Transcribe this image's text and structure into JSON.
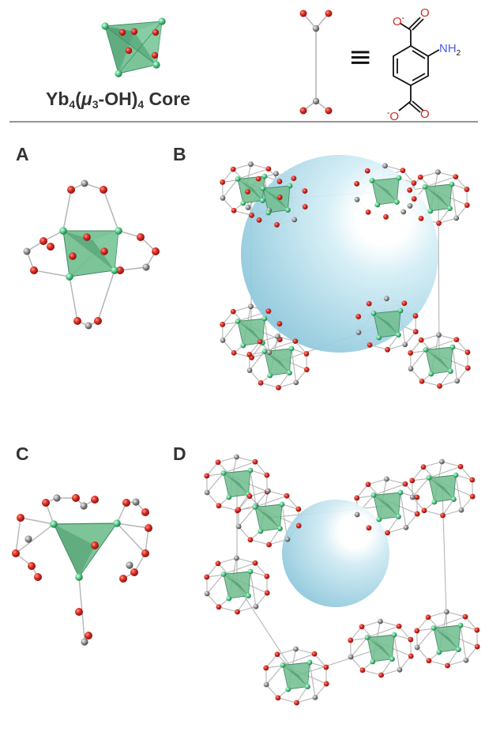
{
  "header": {
    "core_label_prefix": "Yb",
    "core_label_sub1": "4",
    "core_label_open": "(",
    "core_label_mu": "μ",
    "core_label_sub2": "3",
    "core_label_oh": "-OH)",
    "core_label_sub3": "4",
    "core_label_suffix": " Core",
    "equiv_symbol": "≡"
  },
  "linker": {
    "top_O": "O",
    "top_charge": "-",
    "nh2_N": "NH",
    "nh2_sub": "2",
    "bottom_charge": "-",
    "bottom_O": "O",
    "carbonyl_top": "O",
    "carbonyl_bottom": "O"
  },
  "panels": {
    "a": "A",
    "b": "B",
    "c": "C",
    "d": "D"
  },
  "colors": {
    "oxygen": "#d42a22",
    "carbon": "#8c8c8c",
    "ytterbium": "#59d08c",
    "polyhedron": "#5fb87f",
    "pore": "#a9dbe9",
    "nitrogen": "#4a5de8",
    "bond": "#b4b4b4"
  }
}
